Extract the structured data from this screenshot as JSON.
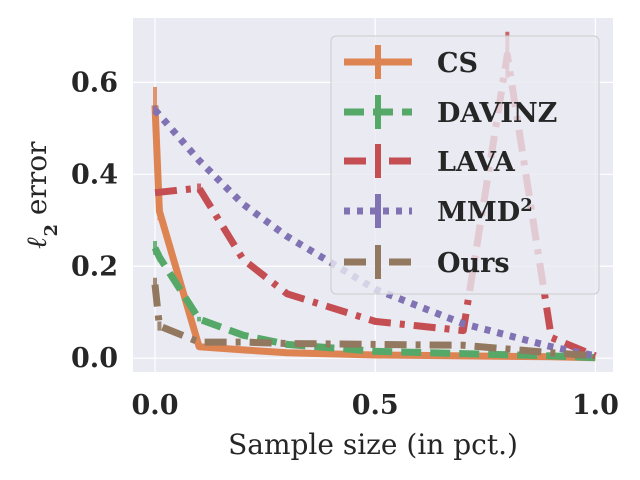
{
  "chart_data": {
    "type": "line",
    "title": "",
    "xlabel": "Sample size (in pct.)",
    "ylabel": "ℓ2 error",
    "ylabel_main": "ℓ",
    "ylabel_sub": "2",
    "ylabel_rest": " error",
    "xlim": [
      -0.05,
      1.04
    ],
    "ylim": [
      -0.03,
      0.74
    ],
    "xticks": [
      0.0,
      0.5,
      1.0
    ],
    "xtick_labels": [
      "0.0",
      "0.5",
      "1.0"
    ],
    "yticks": [
      0.0,
      0.2,
      0.4,
      0.6
    ],
    "ytick_labels": [
      "0.0",
      "0.2",
      "0.4",
      "0.6"
    ],
    "grid": true,
    "legend_position": "top-right",
    "series": [
      {
        "name": "CS",
        "label_main": "CS",
        "color": "#dd8452",
        "style": "solid",
        "x": [
          0.0,
          0.01,
          0.1,
          0.2,
          0.3,
          0.5,
          0.7,
          0.9,
          1.0
        ],
        "y": [
          0.55,
          0.32,
          0.025,
          0.018,
          0.012,
          0.007,
          0.005,
          0.003,
          0.001
        ],
        "error": [
          0.04,
          0.02,
          0.0,
          0.0,
          0.0,
          0.0,
          0.0,
          0.0,
          0.0
        ]
      },
      {
        "name": "DAVINZ",
        "label_main": "DAVINZ",
        "color": "#55a868",
        "style": "dashed",
        "x": [
          0.0,
          0.01,
          0.1,
          0.2,
          0.3,
          0.5,
          0.7,
          0.9,
          1.0
        ],
        "y": [
          0.24,
          0.22,
          0.085,
          0.05,
          0.03,
          0.015,
          0.01,
          0.005,
          0.001
        ],
        "error": [
          0.015,
          0.01,
          0.005,
          0.0,
          0.0,
          0.0,
          0.0,
          0.0,
          0.0
        ]
      },
      {
        "name": "LAVA",
        "label_main": "LAVA",
        "color": "#c44e52",
        "style": "dashdot",
        "x": [
          0.0,
          0.1,
          0.2,
          0.3,
          0.5,
          0.6,
          0.7,
          0.8,
          0.9,
          1.0
        ],
        "y": [
          0.36,
          0.37,
          0.215,
          0.14,
          0.08,
          0.07,
          0.06,
          0.66,
          0.045,
          0.005
        ],
        "error": [
          0.0,
          0.01,
          0.0,
          0.0,
          0.0,
          0.0,
          0.0,
          0.05,
          0.0,
          0.0
        ]
      },
      {
        "name": "MMD²",
        "label_main": "MMD",
        "label_sup": "2",
        "color": "#8172b3",
        "style": "dotted",
        "x": [
          0.0,
          0.1,
          0.2,
          0.3,
          0.5,
          0.7,
          0.9,
          1.0
        ],
        "y": [
          0.54,
          0.43,
          0.335,
          0.265,
          0.15,
          0.075,
          0.025,
          0.005
        ],
        "error": [
          0.01,
          0.0,
          0.0,
          0.0,
          0.0,
          0.0,
          0.0,
          0.0
        ]
      },
      {
        "name": "Ours",
        "label_main": "Ours",
        "color": "#937860",
        "style": "dashdot",
        "x": [
          0.0,
          0.01,
          0.1,
          0.2,
          0.3,
          0.5,
          0.7,
          0.9,
          1.0
        ],
        "y": [
          0.16,
          0.07,
          0.035,
          0.035,
          0.032,
          0.03,
          0.028,
          0.012,
          0.005
        ],
        "error": [
          0.015,
          0.01,
          0.0,
          0.0,
          0.0,
          0.0,
          0.0,
          0.0,
          0.0
        ]
      }
    ]
  }
}
